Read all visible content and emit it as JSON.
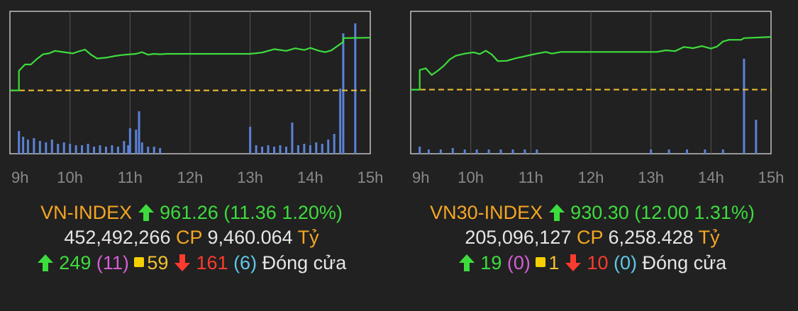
{
  "colors": {
    "up": "#3ddc3d",
    "down": "#ff3b2f",
    "ref": "#f2c230",
    "volume": "#5a82d6",
    "name": "#f5a623",
    "grid": "#555555",
    "frame": "#e8e8e8"
  },
  "panels": [
    {
      "name": "VN-INDEX",
      "direction_icon": "up-arrow-icon",
      "value": "961.26",
      "change": "(11.36 1.20%)",
      "volume": "452,492,266",
      "cp_label": "CP",
      "turnover": "9,460.064",
      "unit": "Tỷ",
      "advancers": "249",
      "ceiling": "(11)",
      "unchanged": "59",
      "decliners": "161",
      "floor": "(6)",
      "status": "Đóng cửa",
      "chart_data": {
        "type": "line",
        "x_ticks": [
          "9h",
          "10h",
          "11h",
          "12h",
          "13h",
          "14h",
          "15h"
        ],
        "x_range": [
          9,
          15
        ],
        "reference": 949.9,
        "ylim": [
          935.0,
          968.5
        ],
        "series": [
          {
            "values": [
              [
                9.0,
                949.9
              ],
              [
                9.15,
                949.9
              ],
              [
                9.15,
                954.5
              ],
              [
                9.25,
                956.0
              ],
              [
                9.35,
                956.0
              ],
              [
                9.45,
                957.3
              ],
              [
                9.55,
                958.4
              ],
              [
                9.65,
                958.6
              ],
              [
                9.75,
                959.2
              ],
              [
                9.9,
                958.9
              ],
              [
                10.05,
                958.6
              ],
              [
                10.15,
                959.1
              ],
              [
                10.25,
                959.5
              ],
              [
                10.35,
                958.3
              ],
              [
                10.45,
                957.4
              ],
              [
                10.6,
                957.6
              ],
              [
                10.75,
                958.0
              ],
              [
                10.85,
                958.2
              ],
              [
                11.0,
                958.4
              ],
              [
                11.1,
                958.5
              ],
              [
                11.2,
                958.9
              ],
              [
                11.3,
                958.3
              ],
              [
                11.4,
                958.5
              ],
              [
                11.5,
                958.4
              ],
              [
                11.6,
                958.5
              ],
              [
                13.0,
                958.5
              ],
              [
                13.2,
                958.8
              ],
              [
                13.4,
                959.6
              ],
              [
                13.6,
                959.2
              ],
              [
                13.75,
                959.8
              ],
              [
                13.9,
                959.4
              ],
              [
                14.0,
                959.9
              ],
              [
                14.15,
                959.2
              ],
              [
                14.25,
                958.9
              ],
              [
                14.35,
                959.3
              ],
              [
                14.45,
                960.3
              ],
              [
                14.55,
                961.3
              ],
              [
                14.55,
                962.2
              ],
              [
                15.0,
                962.3
              ]
            ]
          }
        ],
        "volume_bars": [
          [
            9.15,
            0.16
          ],
          [
            9.22,
            0.12
          ],
          [
            9.3,
            0.1
          ],
          [
            9.4,
            0.11
          ],
          [
            9.5,
            0.09
          ],
          [
            9.6,
            0.08
          ],
          [
            9.7,
            0.1
          ],
          [
            9.8,
            0.07
          ],
          [
            9.9,
            0.08
          ],
          [
            10.0,
            0.07
          ],
          [
            10.1,
            0.06
          ],
          [
            10.2,
            0.06
          ],
          [
            10.3,
            0.07
          ],
          [
            10.4,
            0.05
          ],
          [
            10.5,
            0.06
          ],
          [
            10.6,
            0.05
          ],
          [
            10.7,
            0.06
          ],
          [
            10.8,
            0.05
          ],
          [
            10.9,
            0.09
          ],
          [
            10.97,
            0.06
          ],
          [
            11.0,
            0.18
          ],
          [
            11.1,
            0.17
          ],
          [
            11.15,
            0.3
          ],
          [
            11.2,
            0.08
          ],
          [
            11.3,
            0.05
          ],
          [
            11.4,
            0.05
          ],
          [
            11.5,
            0.04
          ],
          [
            13.0,
            0.19
          ],
          [
            13.1,
            0.06
          ],
          [
            13.2,
            0.05
          ],
          [
            13.3,
            0.06
          ],
          [
            13.4,
            0.05
          ],
          [
            13.5,
            0.06
          ],
          [
            13.6,
            0.05
          ],
          [
            13.7,
            0.22
          ],
          [
            13.8,
            0.06
          ],
          [
            13.9,
            0.07
          ],
          [
            14.0,
            0.06
          ],
          [
            14.1,
            0.08
          ],
          [
            14.2,
            0.07
          ],
          [
            14.3,
            0.1
          ],
          [
            14.4,
            0.14
          ],
          [
            14.5,
            0.46
          ],
          [
            14.55,
            0.85
          ],
          [
            14.75,
            0.92
          ]
        ]
      }
    },
    {
      "name": "VN30-INDEX",
      "direction_icon": "up-arrow-icon",
      "value": "930.30",
      "change": "(12.00 1.31%)",
      "volume": "205,096,127",
      "cp_label": "CP",
      "turnover": "6,258.428",
      "unit": "Tỷ",
      "advancers": "19",
      "ceiling": "(0)",
      "unchanged": "1",
      "decliners": "10",
      "floor": "(0)",
      "status": "Đóng cửa",
      "chart_data": {
        "type": "line",
        "x_ticks": [
          "9h",
          "10h",
          "11h",
          "12h",
          "13h",
          "14h",
          "15h"
        ],
        "x_range": [
          9,
          15
        ],
        "reference": 918.3,
        "ylim": [
          903.0,
          937.0
        ],
        "series": [
          {
            "values": [
              [
                9.0,
                918.3
              ],
              [
                9.15,
                918.3
              ],
              [
                9.15,
                923.0
              ],
              [
                9.25,
                923.4
              ],
              [
                9.35,
                921.8
              ],
              [
                9.45,
                922.8
              ],
              [
                9.55,
                924.0
              ],
              [
                9.65,
                925.5
              ],
              [
                9.75,
                926.4
              ],
              [
                9.9,
                926.9
              ],
              [
                10.05,
                927.2
              ],
              [
                10.15,
                926.8
              ],
              [
                10.25,
                927.6
              ],
              [
                10.35,
                926.7
              ],
              [
                10.45,
                925.1
              ],
              [
                10.6,
                925.2
              ],
              [
                10.75,
                925.8
              ],
              [
                10.85,
                926.1
              ],
              [
                11.0,
                926.6
              ],
              [
                11.1,
                926.9
              ],
              [
                11.25,
                927.3
              ],
              [
                11.35,
                926.9
              ],
              [
                11.5,
                927.3
              ],
              [
                13.0,
                927.3
              ],
              [
                13.1,
                927.3
              ],
              [
                13.25,
                927.7
              ],
              [
                13.4,
                927.5
              ],
              [
                13.55,
                928.5
              ],
              [
                13.7,
                928.2
              ],
              [
                13.85,
                928.7
              ],
              [
                14.0,
                928.1
              ],
              [
                14.1,
                928.6
              ],
              [
                14.2,
                929.8
              ],
              [
                14.3,
                930.2
              ],
              [
                14.5,
                930.2
              ],
              [
                14.55,
                930.6
              ],
              [
                15.0,
                930.9
              ]
            ]
          }
        ],
        "volume_bars": [
          [
            9.15,
            0.05
          ],
          [
            9.3,
            0.03
          ],
          [
            9.5,
            0.03
          ],
          [
            9.7,
            0.04
          ],
          [
            9.9,
            0.03
          ],
          [
            10.1,
            0.03
          ],
          [
            10.3,
            0.03
          ],
          [
            10.5,
            0.03
          ],
          [
            10.7,
            0.03
          ],
          [
            10.9,
            0.03
          ],
          [
            11.1,
            0.03
          ],
          [
            13.0,
            0.03
          ],
          [
            13.3,
            0.03
          ],
          [
            13.6,
            0.03
          ],
          [
            13.9,
            0.03
          ],
          [
            14.2,
            0.03
          ],
          [
            14.55,
            0.67
          ],
          [
            14.75,
            0.24
          ]
        ]
      }
    }
  ]
}
